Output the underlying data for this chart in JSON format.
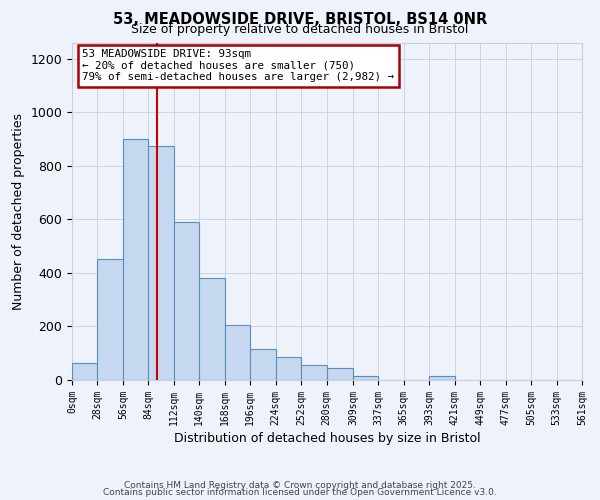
{
  "title": "53, MEADOWSIDE DRIVE, BRISTOL, BS14 0NR",
  "subtitle": "Size of property relative to detached houses in Bristol",
  "xlabel": "Distribution of detached houses by size in Bristol",
  "ylabel": "Number of detached properties",
  "bar_color": "#c5d8f0",
  "bar_edge_color": "#5b8db8",
  "background_color": "#eef2fa",
  "grid_color": "#c8cfe0",
  "vline_x": 93,
  "vline_color": "#cc0000",
  "bin_edges": [
    0,
    28,
    56,
    84,
    112,
    140,
    168,
    196,
    224,
    252,
    280,
    309,
    337,
    365,
    393,
    421,
    449,
    477,
    505,
    533,
    561
  ],
  "bin_labels": [
    "0sqm",
    "28sqm",
    "56sqm",
    "84sqm",
    "112sqm",
    "140sqm",
    "168sqm",
    "196sqm",
    "224sqm",
    "252sqm",
    "280sqm",
    "309sqm",
    "337sqm",
    "365sqm",
    "393sqm",
    "421sqm",
    "449sqm",
    "477sqm",
    "505sqm",
    "533sqm",
    "561sqm"
  ],
  "counts": [
    65,
    450,
    900,
    875,
    590,
    380,
    205,
    115,
    85,
    55,
    45,
    15,
    0,
    0,
    15,
    0,
    0,
    0,
    0,
    0
  ],
  "annotation_line1": "53 MEADOWSIDE DRIVE: 93sqm",
  "annotation_line2": "← 20% of detached houses are smaller (750)",
  "annotation_line3": "79% of semi-detached houses are larger (2,982) →",
  "annotation_box_color": "#ffffff",
  "annotation_box_edge": "#aa0000",
  "footer1": "Contains HM Land Registry data © Crown copyright and database right 2025.",
  "footer2": "Contains public sector information licensed under the Open Government Licence v3.0.",
  "ylim": [
    0,
    1260
  ],
  "xlim_left": 0,
  "xlim_right": 561,
  "yticks": [
    0,
    200,
    400,
    600,
    800,
    1000,
    1200
  ]
}
